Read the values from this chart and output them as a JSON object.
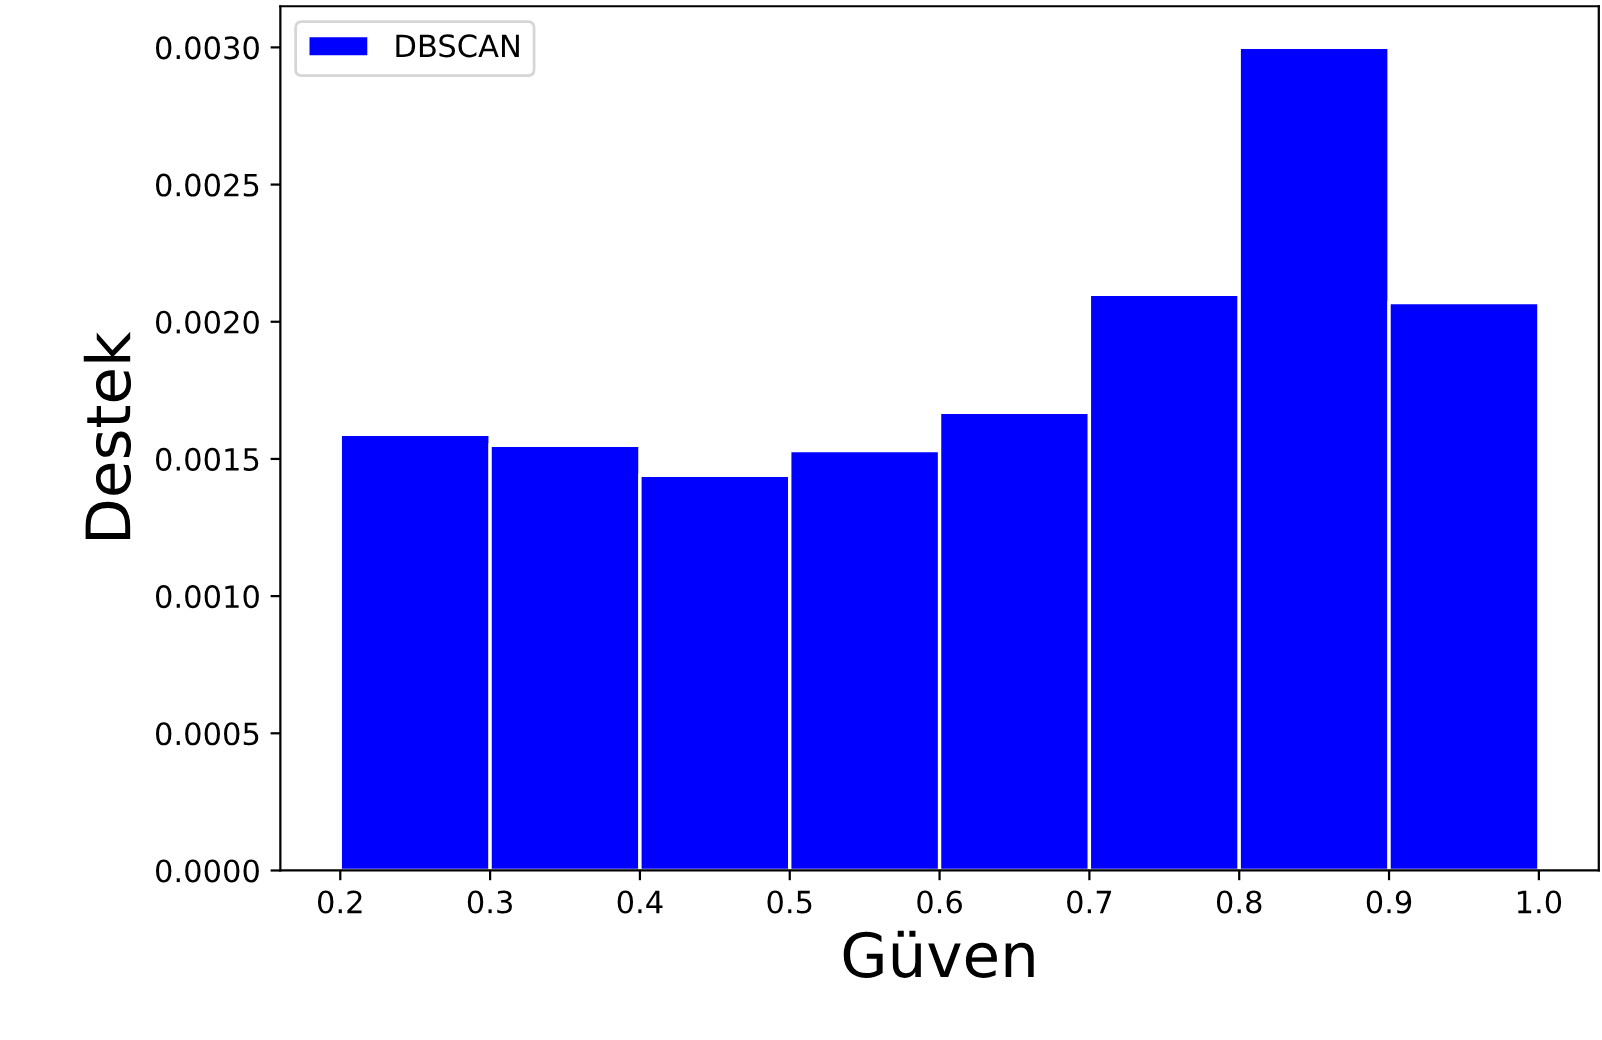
{
  "chart_data": {
    "type": "histogram",
    "xlabel": "Güven",
    "ylabel": "Destek",
    "bins": [
      0.2,
      0.3,
      0.4,
      0.5,
      0.6,
      0.7,
      0.8,
      0.9,
      1.0
    ],
    "series": [
      {
        "name": "DBSCAN",
        "color": "#0000ff",
        "values": [
          0.00159,
          0.00155,
          0.00144,
          0.00153,
          0.00167,
          0.0021,
          0.003,
          0.00207
        ]
      }
    ],
    "xlim": [
      0.16,
      1.04
    ],
    "xticks": [
      {
        "value": 0.2,
        "label": "0.2"
      },
      {
        "value": 0.3,
        "label": "0.3"
      },
      {
        "value": 0.4,
        "label": "0.4"
      },
      {
        "value": 0.5,
        "label": "0.5"
      },
      {
        "value": 0.6,
        "label": "0.6"
      },
      {
        "value": 0.7,
        "label": "0.7"
      },
      {
        "value": 0.8,
        "label": "0.8"
      },
      {
        "value": 0.9,
        "label": "0.9"
      },
      {
        "value": 1.0,
        "label": "1.0"
      }
    ],
    "ylim": [
      0,
      0.00315
    ],
    "yticks": [
      {
        "value": 0,
        "label": "0.0000"
      },
      {
        "value": 0.0005,
        "label": "0.0005"
      },
      {
        "value": 0.001,
        "label": "0.0010"
      },
      {
        "value": 0.0015,
        "label": "0.0015"
      },
      {
        "value": 0.002,
        "label": "0.0020"
      },
      {
        "value": 0.0025,
        "label": "0.0025"
      },
      {
        "value": 0.003,
        "label": "0.0030"
      }
    ],
    "legend": "top left",
    "grid": false
  }
}
